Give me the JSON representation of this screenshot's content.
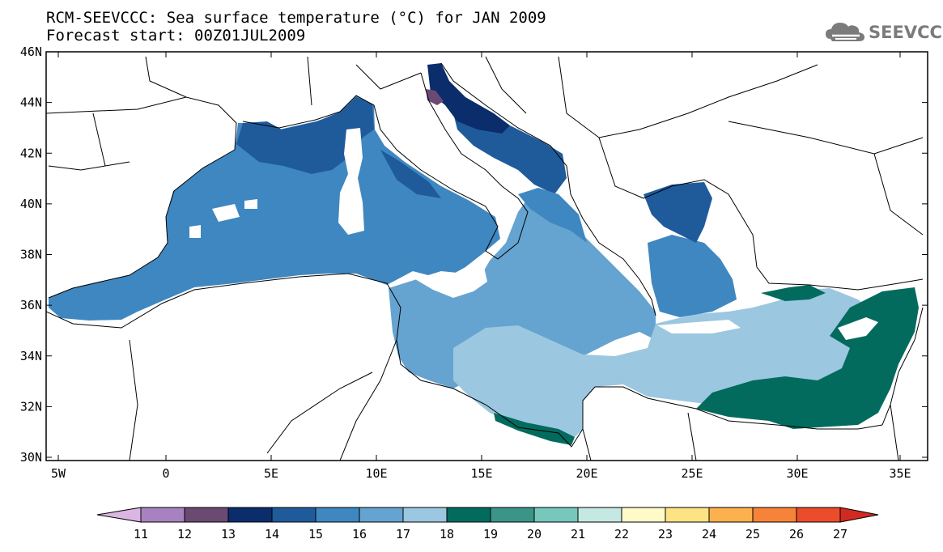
{
  "title": {
    "line1": "RCM-SEEVCCC: Sea surface temperature (°C) for JAN 2009",
    "line2": "Forecast start: 00Z01JUL2009"
  },
  "logo": {
    "text": "SEEVCCC",
    "icon": "cloud-icon"
  },
  "map": {
    "lat_labels": [
      "46N",
      "44N",
      "42N",
      "40N",
      "38N",
      "36N",
      "34N",
      "32N",
      "30N"
    ],
    "lon_labels": [
      "5W",
      "0",
      "5E",
      "10E",
      "15E",
      "20E",
      "25E",
      "30E",
      "35E"
    ],
    "lon_range": [
      -5.5,
      36.5
    ],
    "lat_range": [
      30.0,
      46.0
    ],
    "field": "sea surface temperature",
    "regions": [
      {
        "name": "western-basin",
        "value_class": "15-16"
      },
      {
        "name": "gulf-of-lion-ligurian",
        "value_class": "14-15"
      },
      {
        "name": "northern-adriatic",
        "value_class": "13-14"
      },
      {
        "name": "ionian-central",
        "value_class": "16-17"
      },
      {
        "name": "libyan-shelf-levantine-south",
        "value_class": "17-18"
      },
      {
        "name": "north-aegean",
        "value_class": "14-15"
      },
      {
        "name": "levantine-east",
        "value_class": "18-19"
      }
    ]
  },
  "colorbar": {
    "ticks": [
      "11",
      "12",
      "13",
      "14",
      "15",
      "16",
      "17",
      "18",
      "19",
      "20",
      "21",
      "22",
      "23",
      "24",
      "25",
      "26",
      "27"
    ],
    "colors": [
      "#a882c0",
      "#6a4a73",
      "#0b2d6b",
      "#1f5b9b",
      "#3f87c0",
      "#65a3d1",
      "#9bc7e0",
      "#036b5e",
      "#3a9588",
      "#78c7bc",
      "#c5e8e3",
      "#fffbc8",
      "#fde383",
      "#fdb14e",
      "#f68339",
      "#ec4b2c"
    ],
    "under_color": "#dbb6e3",
    "over_color": "#d22a20"
  }
}
